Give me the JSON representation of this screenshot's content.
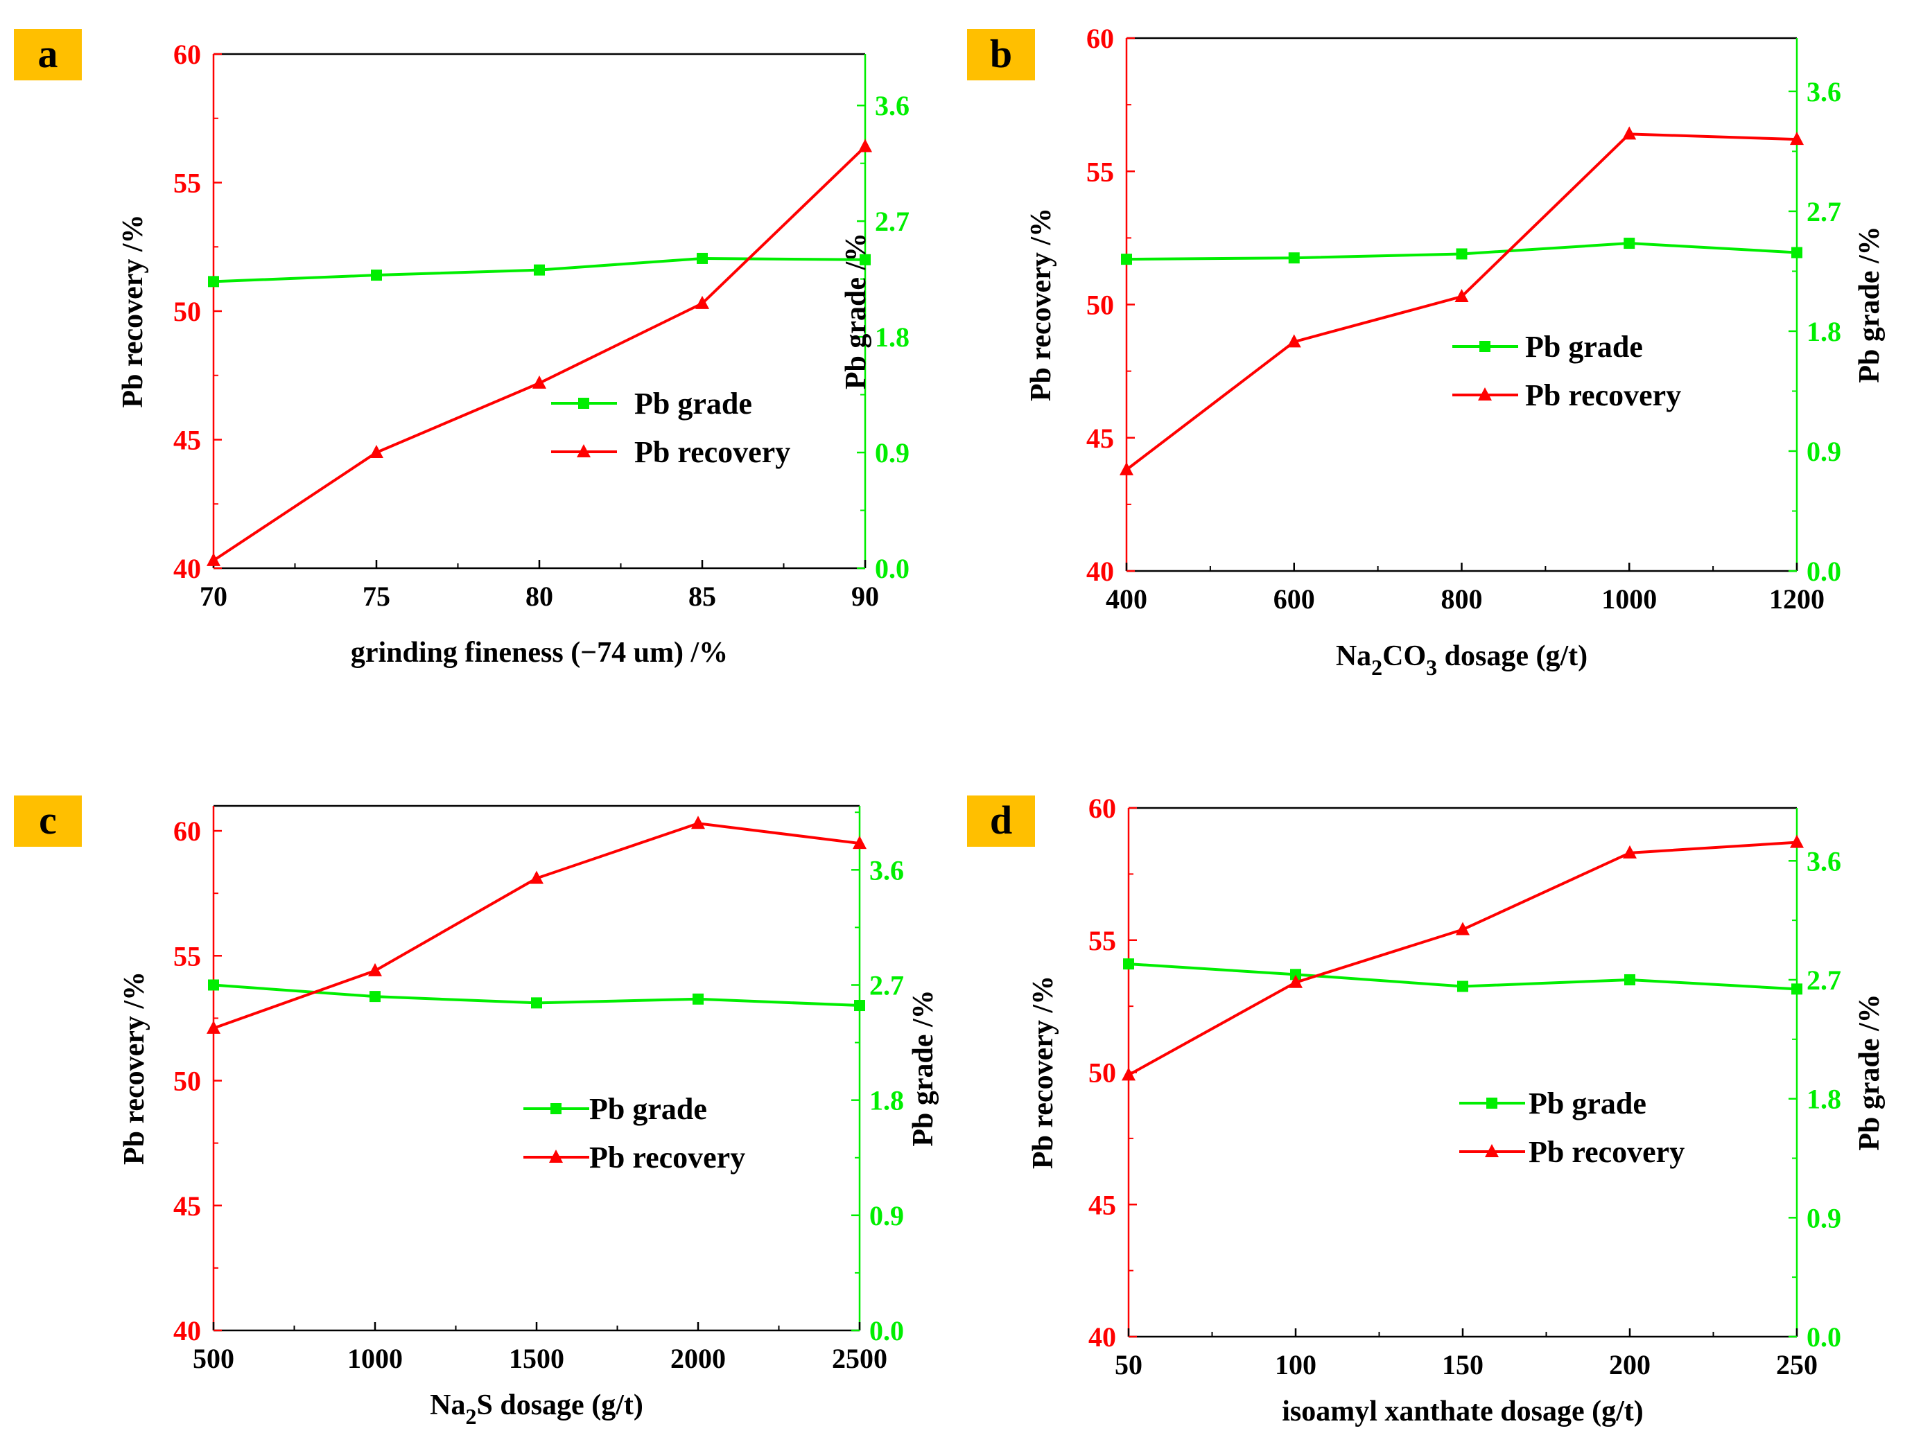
{
  "colors": {
    "recovery": "#ff0000",
    "grade": "#00ee00",
    "axis_black": "#000000",
    "badge": "#ffbf00"
  },
  "chart_data": [
    {
      "panel": "a",
      "type": "line",
      "xlabel": "grinding fineness (−74 um) /%",
      "ylabel_left": "Pb recovery /%",
      "ylabel_right": "Pb grade /%",
      "x": [
        70,
        75,
        80,
        85,
        90
      ],
      "xlim": [
        70,
        90
      ],
      "xticks": [
        "70",
        "75",
        "80",
        "85",
        "90"
      ],
      "ylim_left": [
        40,
        60
      ],
      "yticks_left": [
        "40",
        "45",
        "50",
        "55",
        "60"
      ],
      "ylim_right": [
        0,
        4.0
      ],
      "yticks_right": [
        "0.0",
        "0.9",
        "1.8",
        "2.7",
        "3.6"
      ],
      "legend": {
        "grade": "Pb grade",
        "recovery": "Pb recovery"
      },
      "series": [
        {
          "name": "Pb grade",
          "axis": "right",
          "marker": "square",
          "values": [
            2.23,
            2.28,
            2.32,
            2.41,
            2.4
          ]
        },
        {
          "name": "Pb recovery",
          "axis": "left",
          "marker": "triangle",
          "values": [
            40.3,
            44.5,
            47.2,
            50.3,
            56.4
          ]
        }
      ]
    },
    {
      "panel": "b",
      "type": "line",
      "xlabel_parts": [
        "Na",
        "2",
        "CO",
        "3",
        " dosage (g/t)"
      ],
      "ylabel_left": "Pb recovery /%",
      "ylabel_right": "Pb grade /%",
      "x": [
        400,
        600,
        800,
        1000,
        1200
      ],
      "xlim": [
        400,
        1200
      ],
      "xticks": [
        "400",
        "600",
        "800",
        "1000",
        "1200"
      ],
      "ylim_left": [
        40,
        60
      ],
      "yticks_left": [
        "40",
        "45",
        "50",
        "55",
        "60"
      ],
      "ylim_right": [
        0,
        4.0
      ],
      "yticks_right": [
        "0.0",
        "0.9",
        "1.8",
        "2.7",
        "3.6"
      ],
      "legend": {
        "grade": "Pb grade",
        "recovery": "Pb recovery"
      },
      "series": [
        {
          "name": "Pb grade",
          "axis": "right",
          "marker": "square",
          "values": [
            2.34,
            2.35,
            2.38,
            2.46,
            2.39
          ]
        },
        {
          "name": "Pb recovery",
          "axis": "left",
          "marker": "triangle",
          "values": [
            43.8,
            48.6,
            50.3,
            56.4,
            56.2
          ]
        }
      ]
    },
    {
      "panel": "c",
      "type": "line",
      "xlabel_parts": [
        "Na",
        "2",
        "S dosage (g/t)"
      ],
      "ylabel_left": "Pb recovery /%",
      "ylabel_right": "Pb grade /%",
      "x": [
        500,
        1000,
        1500,
        2000,
        2500
      ],
      "xlim": [
        500,
        2500
      ],
      "xticks": [
        "500",
        "1000",
        "1500",
        "2000",
        "2500"
      ],
      "ylim_left": [
        40,
        61
      ],
      "yticks_left": [
        "40",
        "45",
        "50",
        "55",
        "60"
      ],
      "ylim_right": [
        0,
        4.1
      ],
      "yticks_right": [
        "0.0",
        "0.9",
        "1.8",
        "2.7",
        "3.6"
      ],
      "legend": {
        "grade": "Pb grade",
        "recovery": "Pb recovery"
      },
      "series": [
        {
          "name": "Pb grade",
          "axis": "right",
          "marker": "square",
          "values": [
            2.7,
            2.61,
            2.56,
            2.59,
            2.54
          ]
        },
        {
          "name": "Pb recovery",
          "axis": "left",
          "marker": "triangle",
          "values": [
            52.1,
            54.4,
            58.1,
            60.3,
            59.5
          ]
        }
      ]
    },
    {
      "panel": "d",
      "type": "line",
      "xlabel": "isoamyl xanthate dosage (g/t)",
      "ylabel_left": "Pb recovery /%",
      "ylabel_right": "Pb grade /%",
      "x": [
        50,
        100,
        150,
        200,
        250
      ],
      "xlim": [
        50,
        250
      ],
      "xticks": [
        "50",
        "100",
        "150",
        "200",
        "250"
      ],
      "ylim_left": [
        40,
        60
      ],
      "yticks_left": [
        "40",
        "45",
        "50",
        "55",
        "60"
      ],
      "ylim_right": [
        0,
        4.0
      ],
      "yticks_right": [
        "0.0",
        "0.9",
        "1.8",
        "2.7",
        "3.6"
      ],
      "legend": {
        "grade": "Pb grade",
        "recovery": "Pb recovery"
      },
      "series": [
        {
          "name": "Pb grade",
          "axis": "right",
          "marker": "square",
          "values": [
            2.82,
            2.74,
            2.65,
            2.7,
            2.63
          ]
        },
        {
          "name": "Pb recovery",
          "axis": "left",
          "marker": "triangle",
          "values": [
            49.9,
            53.4,
            55.4,
            58.3,
            58.7
          ]
        }
      ]
    }
  ]
}
